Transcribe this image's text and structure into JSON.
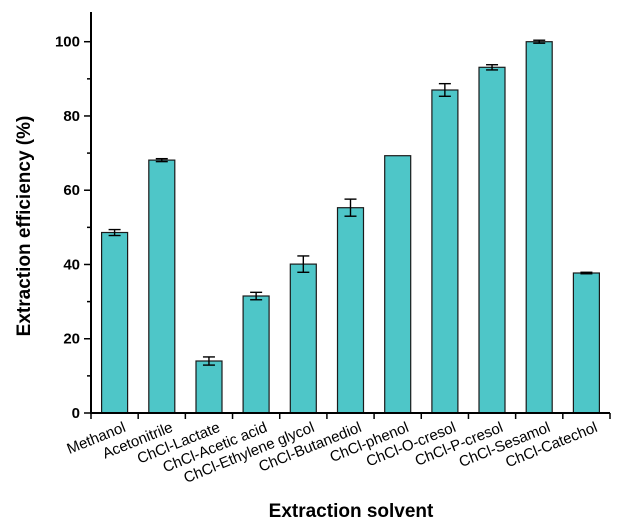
{
  "chart_data": {
    "type": "bar",
    "xlabel": "Extraction solvent",
    "ylabel": "Extraction efficiency (%)",
    "ylim": [
      0,
      108
    ],
    "yticks": [
      0,
      20,
      40,
      60,
      80,
      100
    ],
    "grid": false,
    "bar_color": "#4ec6c8",
    "bar_edge_color": "#1a1a1a",
    "categories": [
      "Methanol",
      "Acetonitrile",
      "ChCl-Lactate",
      "ChCl-Acetic acid",
      "ChCl-Ethylene glycol",
      "ChCl-Butanediol",
      "ChCl-phenol",
      "ChCl-O-cresol",
      "ChCl-P-cresol",
      "ChCl-Sesamol",
      "ChCl-Catechol"
    ],
    "values": [
      48.6,
      68.1,
      14.0,
      31.5,
      40.1,
      55.3,
      69.3,
      87.0,
      93.1,
      100.0,
      37.7
    ],
    "errors": [
      0.8,
      0.4,
      1.1,
      1.0,
      2.2,
      2.3,
      0.0,
      1.7,
      0.7,
      0.4,
      0.2
    ]
  }
}
